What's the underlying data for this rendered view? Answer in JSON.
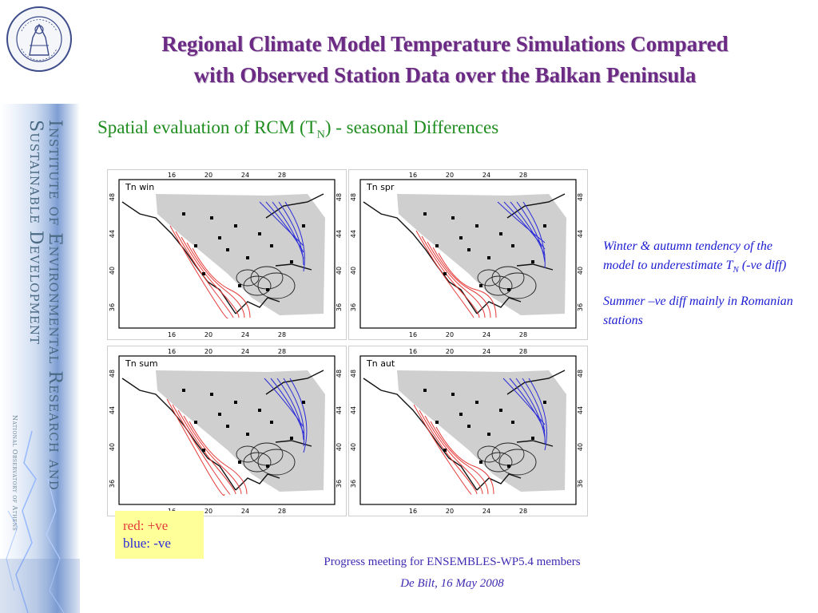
{
  "header": {
    "title_line1": "Regional Climate Model Temperature Simulations Compared",
    "title_line2": "with Observed Station Data over the Balkan Peninsula"
  },
  "subtitle": {
    "prefix": "Spatial evaluation of RCM (T",
    "subscript": "N",
    "suffix": ") - seasonal Differences"
  },
  "sidebar": {
    "line1": "Institute of Environmental Research and",
    "line2": "Sustainable Development",
    "line3": "National Observatory of Athens",
    "seal_text": "National Observatory of Athens"
  },
  "maps": {
    "top_axis_ticks": [
      "16",
      "20",
      "24",
      "28"
    ],
    "bottom_axis_ticks": [
      "16",
      "20",
      "24",
      "28"
    ],
    "lat_ticks": [
      "48",
      "44",
      "40",
      "36"
    ],
    "panels": [
      {
        "label": "Tn win"
      },
      {
        "label": "Tn spr"
      },
      {
        "label": "Tn sum"
      },
      {
        "label": "Tn aut"
      }
    ]
  },
  "notes": {
    "p1_a": "Winter & autumn tendency of the model to underestimate T",
    "p1_sub": "N",
    "p1_b": " (-ve diff)",
    "p2": "Summer –ve diff mainly in Romanian stations"
  },
  "legend": {
    "red": "red: +ve",
    "blue": "blue: -ve",
    "colors": {
      "positive": "#e53a3a",
      "negative": "#2b2bd8"
    }
  },
  "footer": {
    "line1": "Progress meeting for ENSEMBLES-WP5.4 members",
    "line2": "De Bilt, 16 May 2008"
  },
  "colors": {
    "title": "#6b2a83",
    "subtitle": "#1f8d1f",
    "note": "#1c1cd2",
    "footer": "#3e2bb1"
  }
}
